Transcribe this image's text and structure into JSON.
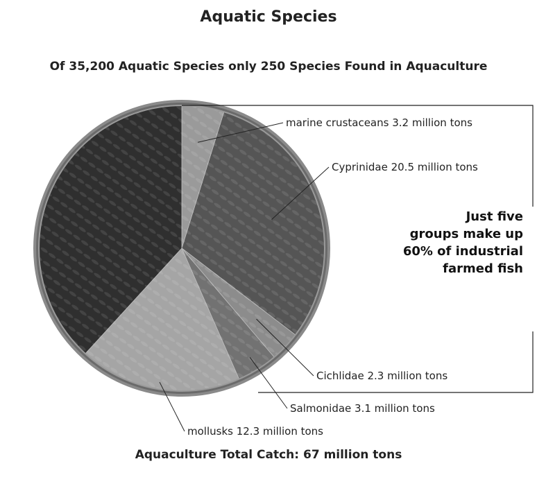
{
  "title": "Aquatic Species",
  "subtitle": "Of 35,200 Aquatic Species only 250 Species Found in Aquaculture",
  "footer": "Aquaculture Total Catch: 67 million tons",
  "callout": [
    "Just five",
    "groups make up",
    "60% of industrial",
    "farmed fish"
  ],
  "chart_data": {
    "type": "pie",
    "title": "Aquatic Species",
    "total": 67,
    "unit": "million tons",
    "slices": [
      {
        "label": "marine crustaceans 3.2 million tons",
        "value": 3.2,
        "color": "#9a9a9a"
      },
      {
        "label": "Cyprinidae 20.5 million tons",
        "value": 20.5,
        "color": "#555555"
      },
      {
        "label": "Cichlidae 2.3 million tons",
        "value": 2.3,
        "color": "#8c8c8c"
      },
      {
        "label": "Salmonidae 3.1 million tons",
        "value": 3.1,
        "color": "#727272"
      },
      {
        "label": "mollusks 12.3 million tons",
        "value": 12.3,
        "color": "#a5a5a5"
      },
      {
        "label": "",
        "value": 25.6,
        "color": "#2f2f2f"
      }
    ]
  }
}
